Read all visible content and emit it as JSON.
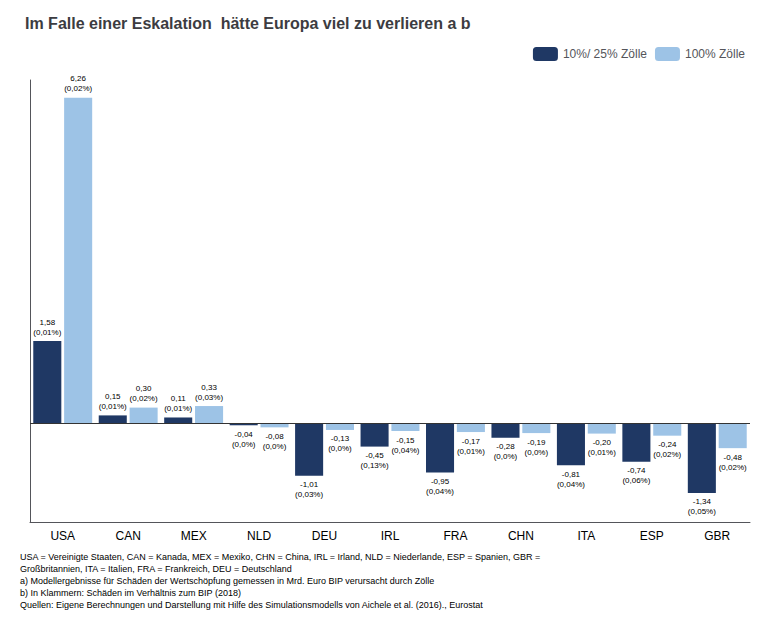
{
  "chart_data": {
    "type": "bar",
    "title": "Im Falle einer Eskalation  hätte Europa viel zu verlieren a b",
    "categories": [
      "USA",
      "CAN",
      "MEX",
      "NLD",
      "DEU",
      "IRL",
      "FRA",
      "CHN",
      "ITA",
      "ESP",
      "GBR"
    ],
    "series": [
      {
        "name": "10%/ 25% Zölle",
        "color": "#1F3864",
        "values": [
          1.58,
          0.15,
          0.11,
          -0.04,
          -1.01,
          -0.45,
          -0.95,
          -0.28,
          -0.81,
          -0.74,
          -1.34
        ],
        "value_labels": [
          "1,58\n(0,01%)",
          "0,15\n(0,01%)",
          "0,11\n(0,01%)",
          "-0,04\n(0,0%)",
          "-1,01\n(0,03%)",
          "-0,45\n(0,13%)",
          "-0,95\n(0,04%)",
          "-0,28\n(0,0%)",
          "-0,81\n(0,04%)",
          "-0,74\n(0,06%)",
          "-1,34\n(0,05%)"
        ]
      },
      {
        "name": "100% Zölle",
        "color": "#9DC3E6",
        "values": [
          6.26,
          0.3,
          0.33,
          -0.08,
          -0.13,
          -0.15,
          -0.17,
          -0.19,
          -0.2,
          -0.24,
          -0.48
        ],
        "value_labels": [
          "6,26\n(0,02%)",
          "0,30\n(0,02%)",
          "0,33\n(0,03%)",
          "-0,08\n(0,0%)",
          "-0,13\n(0,0%)",
          "-0,15\n(0,04%)",
          "-0,17\n(0,01%)",
          "-0,19\n(0,0%)",
          "-0,20\n(0,01%)",
          "-0,24\n(0,02%)",
          "-0,48\n(0,02%)"
        ]
      }
    ],
    "ylim": [
      -1.9,
      6.6
    ],
    "grid": false,
    "legend": "upper right",
    "data_labels": true,
    "tick_labels": "x",
    "annotations": [
      "USA = Vereinigte Staaten, CAN = Kanada, MEX = Mexiko, CHN = China, IRL = Irland, NLD = Niederlande, ESP = Spanien, GBR =",
      "Großbritannien, ITA = Italien, FRA = Frankreich, DEU = Deutschland",
      "a) Modellergebnisse für Schäden der Wertschöpfung gemessen in Mrd. Euro BIP verursacht durch Zölle",
      "b) In Klammern: Schäden im Verhältnis zum BIP (2018)",
      "Quellen: Eigene Berechnungen und Darstellung mit Hilfe des Simulationsmodells von Aichele et al. (2016)., Eurostat"
    ]
  }
}
